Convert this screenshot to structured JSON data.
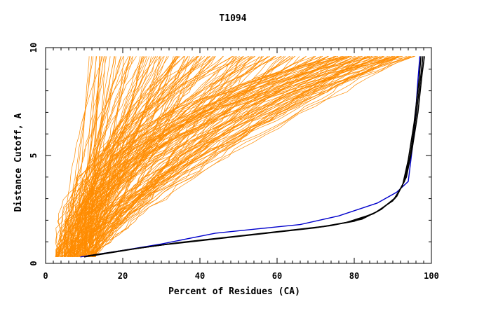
{
  "chart_data": {
    "type": "line",
    "title": "T1094",
    "xlabel": "Percent of Residues (CA)",
    "ylabel": "Distance Cutoff, A",
    "xlim": [
      0,
      100
    ],
    "ylim": [
      0,
      10
    ],
    "x_ticks": [
      0,
      20,
      40,
      60,
      80,
      100
    ],
    "x_tick_labels": [
      "0",
      "20",
      "40",
      "60",
      "80",
      "100"
    ],
    "y_ticks": [
      0,
      5,
      10
    ],
    "y_tick_labels": [
      "0",
      "5",
      "10"
    ],
    "grid": false,
    "legend": "none",
    "colors": {
      "bundle": "#ff8c00",
      "highlight": "#0000cc",
      "best": "#000000",
      "axis": "#000000"
    },
    "series": [
      {
        "color": "#0000cc",
        "points": [
          [
            9,
            0.3
          ],
          [
            20,
            0.6
          ],
          [
            30,
            0.9
          ],
          [
            44,
            1.4
          ],
          [
            55,
            1.6
          ],
          [
            66,
            1.8
          ],
          [
            76,
            2.2
          ],
          [
            86,
            2.8
          ],
          [
            91,
            3.3
          ],
          [
            94,
            3.8
          ],
          [
            95.5,
            6.0
          ],
          [
            96.5,
            8.5
          ],
          [
            97,
            9.6
          ]
        ]
      },
      {
        "color": "#000000",
        "points": [
          [
            10,
            0.3
          ],
          [
            20,
            0.6
          ],
          [
            30,
            0.85
          ],
          [
            40,
            1.05
          ],
          [
            50,
            1.25
          ],
          [
            60,
            1.45
          ],
          [
            70,
            1.65
          ],
          [
            78,
            1.9
          ],
          [
            85,
            2.3
          ],
          [
            90,
            2.9
          ],
          [
            92.5,
            3.6
          ],
          [
            94,
            4.8
          ],
          [
            95.5,
            6.5
          ],
          [
            96.8,
            8.5
          ],
          [
            97.3,
            9.6
          ]
        ]
      },
      {
        "color": "#000000",
        "points": [
          [
            11,
            0.35
          ],
          [
            22,
            0.65
          ],
          [
            32,
            0.9
          ],
          [
            42,
            1.1
          ],
          [
            52,
            1.3
          ],
          [
            62,
            1.5
          ],
          [
            72,
            1.7
          ],
          [
            80,
            1.95
          ],
          [
            86,
            2.4
          ],
          [
            90.5,
            3.0
          ],
          [
            93,
            3.8
          ],
          [
            94.5,
            5.0
          ],
          [
            96,
            6.8
          ],
          [
            97.2,
            8.6
          ],
          [
            97.8,
            9.6
          ]
        ]
      },
      {
        "color": "#000000",
        "points": [
          [
            12,
            0.35
          ],
          [
            24,
            0.7
          ],
          [
            34,
            0.95
          ],
          [
            44,
            1.15
          ],
          [
            54,
            1.35
          ],
          [
            64,
            1.55
          ],
          [
            74,
            1.75
          ],
          [
            82,
            2.05
          ],
          [
            87,
            2.5
          ],
          [
            91,
            3.1
          ],
          [
            93.5,
            4.0
          ],
          [
            95,
            5.3
          ],
          [
            96.5,
            7.0
          ],
          [
            97.6,
            8.8
          ],
          [
            98.2,
            9.6
          ]
        ]
      }
    ],
    "bundle": {
      "count": 200,
      "start_x_range": [
        2.5,
        13
      ],
      "end_x_range": [
        10,
        96
      ],
      "y_start": 0.3,
      "y_end": 9.6,
      "color": "#ff8c00"
    }
  }
}
